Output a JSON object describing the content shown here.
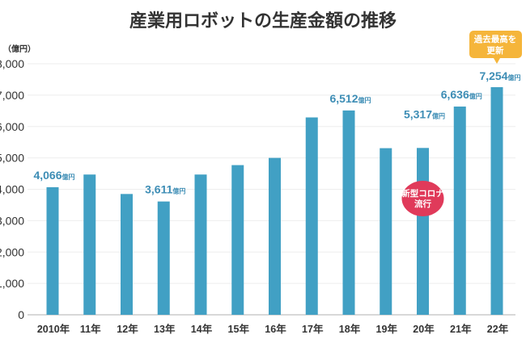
{
  "chart_data": {
    "type": "bar",
    "title": "産業用ロボットの生産金額の推移",
    "ylabel": "（億円）",
    "ylim": [
      0,
      8000
    ],
    "yticks": [
      "0",
      "1,000",
      "2,000",
      "3,000",
      "4,000",
      "5,000",
      "6,000",
      "7,000",
      "8,000"
    ],
    "categories": [
      "2010年",
      "11年",
      "12年",
      "13年",
      "14年",
      "15年",
      "16年",
      "17年",
      "18年",
      "19年",
      "20年",
      "21年",
      "22年"
    ],
    "values": [
      4066,
      4470,
      3850,
      3611,
      4470,
      4770,
      5000,
      6290,
      6512,
      5310,
      5317,
      6636,
      7254
    ],
    "data_labels": [
      {
        "index": 0,
        "value": "4,066",
        "unit": "億円"
      },
      {
        "index": 3,
        "value": "3,611",
        "unit": "億円"
      },
      {
        "index": 8,
        "value": "6,512",
        "unit": "億円"
      },
      {
        "index": 10,
        "value": "5,317",
        "unit": "億円"
      },
      {
        "index": 11,
        "value": "6,636",
        "unit": "億円"
      },
      {
        "index": 12,
        "value": "7,254",
        "unit": "億円"
      }
    ],
    "annotations": [
      {
        "index": 10,
        "text": [
          "新型コロナ",
          "流行"
        ],
        "color": "#e03a5a"
      },
      {
        "index": 12,
        "text": [
          "過去最高を",
          "更新"
        ],
        "color": "#f5b53a"
      }
    ],
    "bar_color": "#41a0c4",
    "grid": true
  }
}
